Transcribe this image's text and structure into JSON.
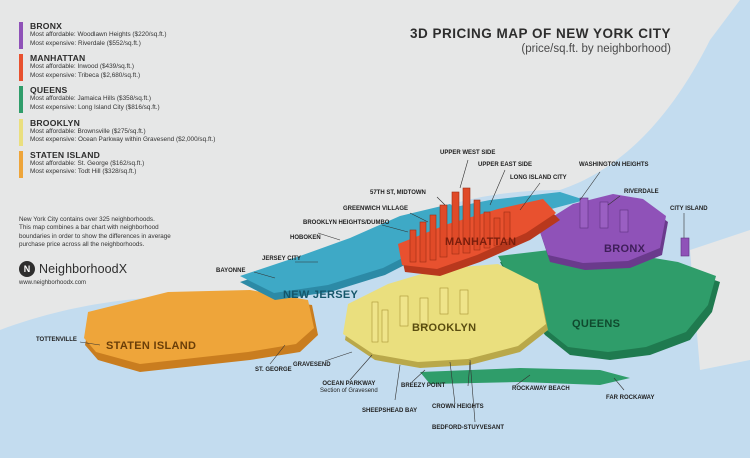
{
  "title": "3D PRICING MAP OF NEW YORK CITY",
  "subtitle": "(price/sq.ft. by neighborhood)",
  "colors": {
    "bronx": "#8f52b8",
    "manhattan": "#e8512f",
    "queens": "#2f9d6a",
    "brooklyn": "#eadf7e",
    "staten_island": "#eea53a",
    "new_jersey": "#3ea9c6",
    "water": "#c3dcef",
    "land": "#e6e7e7"
  },
  "legend": [
    {
      "name": "BRONX",
      "color": "#8f52b8",
      "affordable": "Most affordable: Woodlawn Heights ($220/sq.ft.)",
      "expensive": "Most expensive: Riverdale ($552/sq.ft.)"
    },
    {
      "name": "MANHATTAN",
      "color": "#e8512f",
      "affordable": "Most affordable: Inwood ($439/sq.ft.)",
      "expensive": "Most expensive: Tribeca ($2,680/sq.ft.)"
    },
    {
      "name": "QUEENS",
      "color": "#2f9d6a",
      "affordable": "Most affordable: Jamaica Hills ($358/sq.ft.)",
      "expensive": "Most expensive: Long Island City ($816/sq.ft.)"
    },
    {
      "name": "BROOKLYN",
      "color": "#eadf7e",
      "affordable": "Most affordable: Brownsville ($275/sq.ft.)",
      "expensive": "Most expensive: Ocean Parkway within Gravesend ($2,000/sq.ft.)"
    },
    {
      "name": "STATEN ISLAND",
      "color": "#eea53a",
      "affordable": "Most affordable: St. George ($162/sq.ft.)",
      "expensive": "Most expensive: Todt Hill ($328/sq.ft.)"
    }
  ],
  "intro": [
    "New York City contains over 325 neighborhoods.",
    "This map combines a bar chart with neighborhood",
    "boundaries in order to show the differences in average",
    "purchase price across all the neighborhoods."
  ],
  "brand": {
    "mark": "N",
    "name": "NeighborhoodX",
    "site": "www.neighborhoodx.com"
  },
  "borough_labels": {
    "manhattan": "MANHATTAN",
    "bronx": "BRONX",
    "queens": "QUEENS",
    "brooklyn": "BROOKLYN",
    "staten_island": "STATEN ISLAND",
    "new_jersey": "NEW JERSEY"
  },
  "neighborhood_labels": {
    "upper_west_side": "UPPER WEST SIDE",
    "upper_east_side": "UPPER EAST SIDE",
    "washington_heights": "WASHINGTON HEIGHTS",
    "long_island_city": "LONG ISLAND CITY",
    "riverdale": "RIVERDALE",
    "midtown": "57TH ST, MIDTOWN",
    "greenwich_village": "GREENWICH VILLAGE",
    "city_island": "CITY ISLAND",
    "brooklyn_heights": "BROOKLYN HEIGHTS/DUMBO",
    "hoboken": "HOBOKEN",
    "jersey_city": "JERSEY CITY",
    "bayonne": "BAYONNE",
    "tottenville": "TOTTENVILLE",
    "st_george": "ST. GEORGE",
    "gravesend": "GRAVESEND",
    "ocean_parkway": "OCEAN PARKWAY",
    "ocean_parkway_sub": "Section of Gravesend",
    "breezy_point": "BREEZY POINT",
    "rockaway_beach": "ROCKAWAY BEACH",
    "far_rockaway": "FAR ROCKAWAY",
    "crown_heights": "CROWN HEIGHTS",
    "sheepshead_bay": "SHEEPSHEAD BAY",
    "bedford_stuyvesant": "BEDFORD-STUYVESANT"
  }
}
